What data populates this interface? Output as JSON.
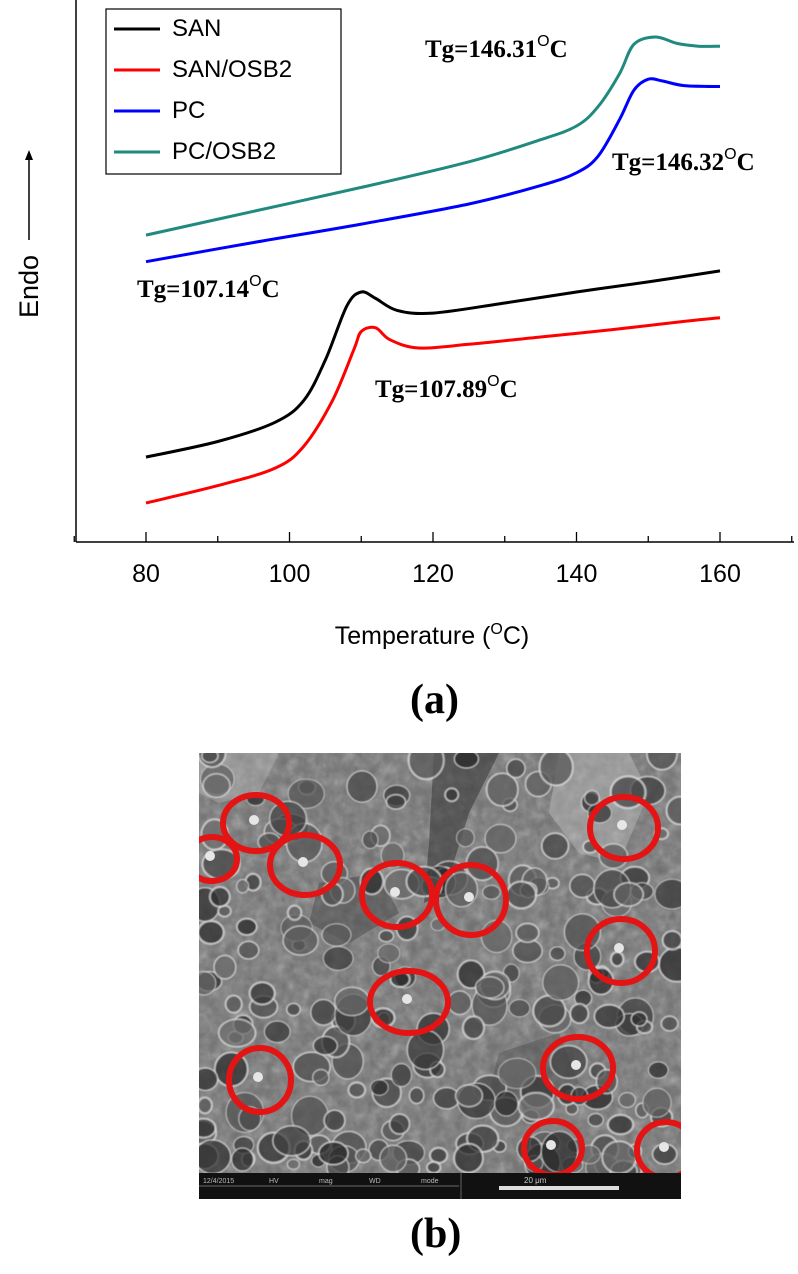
{
  "figure": {
    "panel_a_label": "(a)",
    "panel_b_label": "(b)"
  },
  "chart_data": {
    "type": "line",
    "title": "",
    "xlabel_prefix": "Temperature (",
    "xlabel_sup": "O",
    "xlabel_suffix": "C)",
    "ylabel": "Endo",
    "xlim": [
      70,
      170
    ],
    "xticks": [
      80,
      100,
      120,
      140,
      160
    ],
    "yticks_shown": false,
    "grid": false,
    "legend_position": "top-left",
    "series": [
      {
        "name": "SAN",
        "color": "#000000",
        "points": [
          [
            80,
            0.25
          ],
          [
            90,
            0.335
          ],
          [
            98,
            0.44
          ],
          [
            102,
            0.56
          ],
          [
            105,
            0.78
          ],
          [
            108,
            1.075
          ],
          [
            110,
            1.15
          ],
          [
            112,
            1.115
          ],
          [
            115,
            1.05
          ],
          [
            120,
            1.035
          ],
          [
            130,
            1.09
          ],
          [
            140,
            1.15
          ],
          [
            150,
            1.205
          ],
          [
            160,
            1.265
          ]
        ]
      },
      {
        "name": "SAN/OSB2",
        "color": "#ff0000",
        "points": [
          [
            80,
            0.0
          ],
          [
            90,
            0.095
          ],
          [
            98,
            0.19
          ],
          [
            102,
            0.31
          ],
          [
            106,
            0.56
          ],
          [
            109,
            0.84
          ],
          [
            110,
            0.935
          ],
          [
            112,
            0.955
          ],
          [
            114,
            0.89
          ],
          [
            118,
            0.845
          ],
          [
            125,
            0.865
          ],
          [
            135,
            0.905
          ],
          [
            145,
            0.945
          ],
          [
            155,
            0.99
          ],
          [
            160,
            1.01
          ]
        ]
      },
      {
        "name": "PC",
        "color": "#0000ff",
        "points": [
          [
            80,
            1.315
          ],
          [
            95,
            1.42
          ],
          [
            110,
            1.52
          ],
          [
            125,
            1.63
          ],
          [
            135,
            1.73
          ],
          [
            140,
            1.8
          ],
          [
            143,
            1.89
          ],
          [
            146,
            2.09
          ],
          [
            148,
            2.25
          ],
          [
            150,
            2.31
          ],
          [
            152,
            2.3
          ],
          [
            155,
            2.275
          ],
          [
            160,
            2.27
          ]
        ]
      },
      {
        "name": "PC/OSB2",
        "color": "#1f8a7d",
        "points": [
          [
            80,
            1.46
          ],
          [
            95,
            1.59
          ],
          [
            110,
            1.72
          ],
          [
            125,
            1.86
          ],
          [
            135,
            1.98
          ],
          [
            140,
            2.055
          ],
          [
            143,
            2.16
          ],
          [
            146,
            2.34
          ],
          [
            148,
            2.5
          ],
          [
            151,
            2.54
          ],
          [
            154,
            2.505
          ],
          [
            157,
            2.49
          ],
          [
            160,
            2.49
          ]
        ]
      }
    ],
    "annotations": [
      {
        "text": "Tg=146.31",
        "sup": "O",
        "unit": "C"
      },
      {
        "text": "Tg=146.32",
        "sup": "O",
        "unit": "C"
      },
      {
        "text": "Tg=107.14",
        "sup": "O",
        "unit": "C"
      },
      {
        "text": "Tg=107.89",
        "sup": "O",
        "unit": "C"
      }
    ]
  },
  "sem_image": {
    "colors": {
      "circle": "#e41414",
      "background": "#6e6e6e"
    },
    "info_bar": {
      "cells": [
        "12/4/2015",
        "HV",
        "mag",
        "WD",
        "mode",
        "20 μm"
      ]
    }
  }
}
